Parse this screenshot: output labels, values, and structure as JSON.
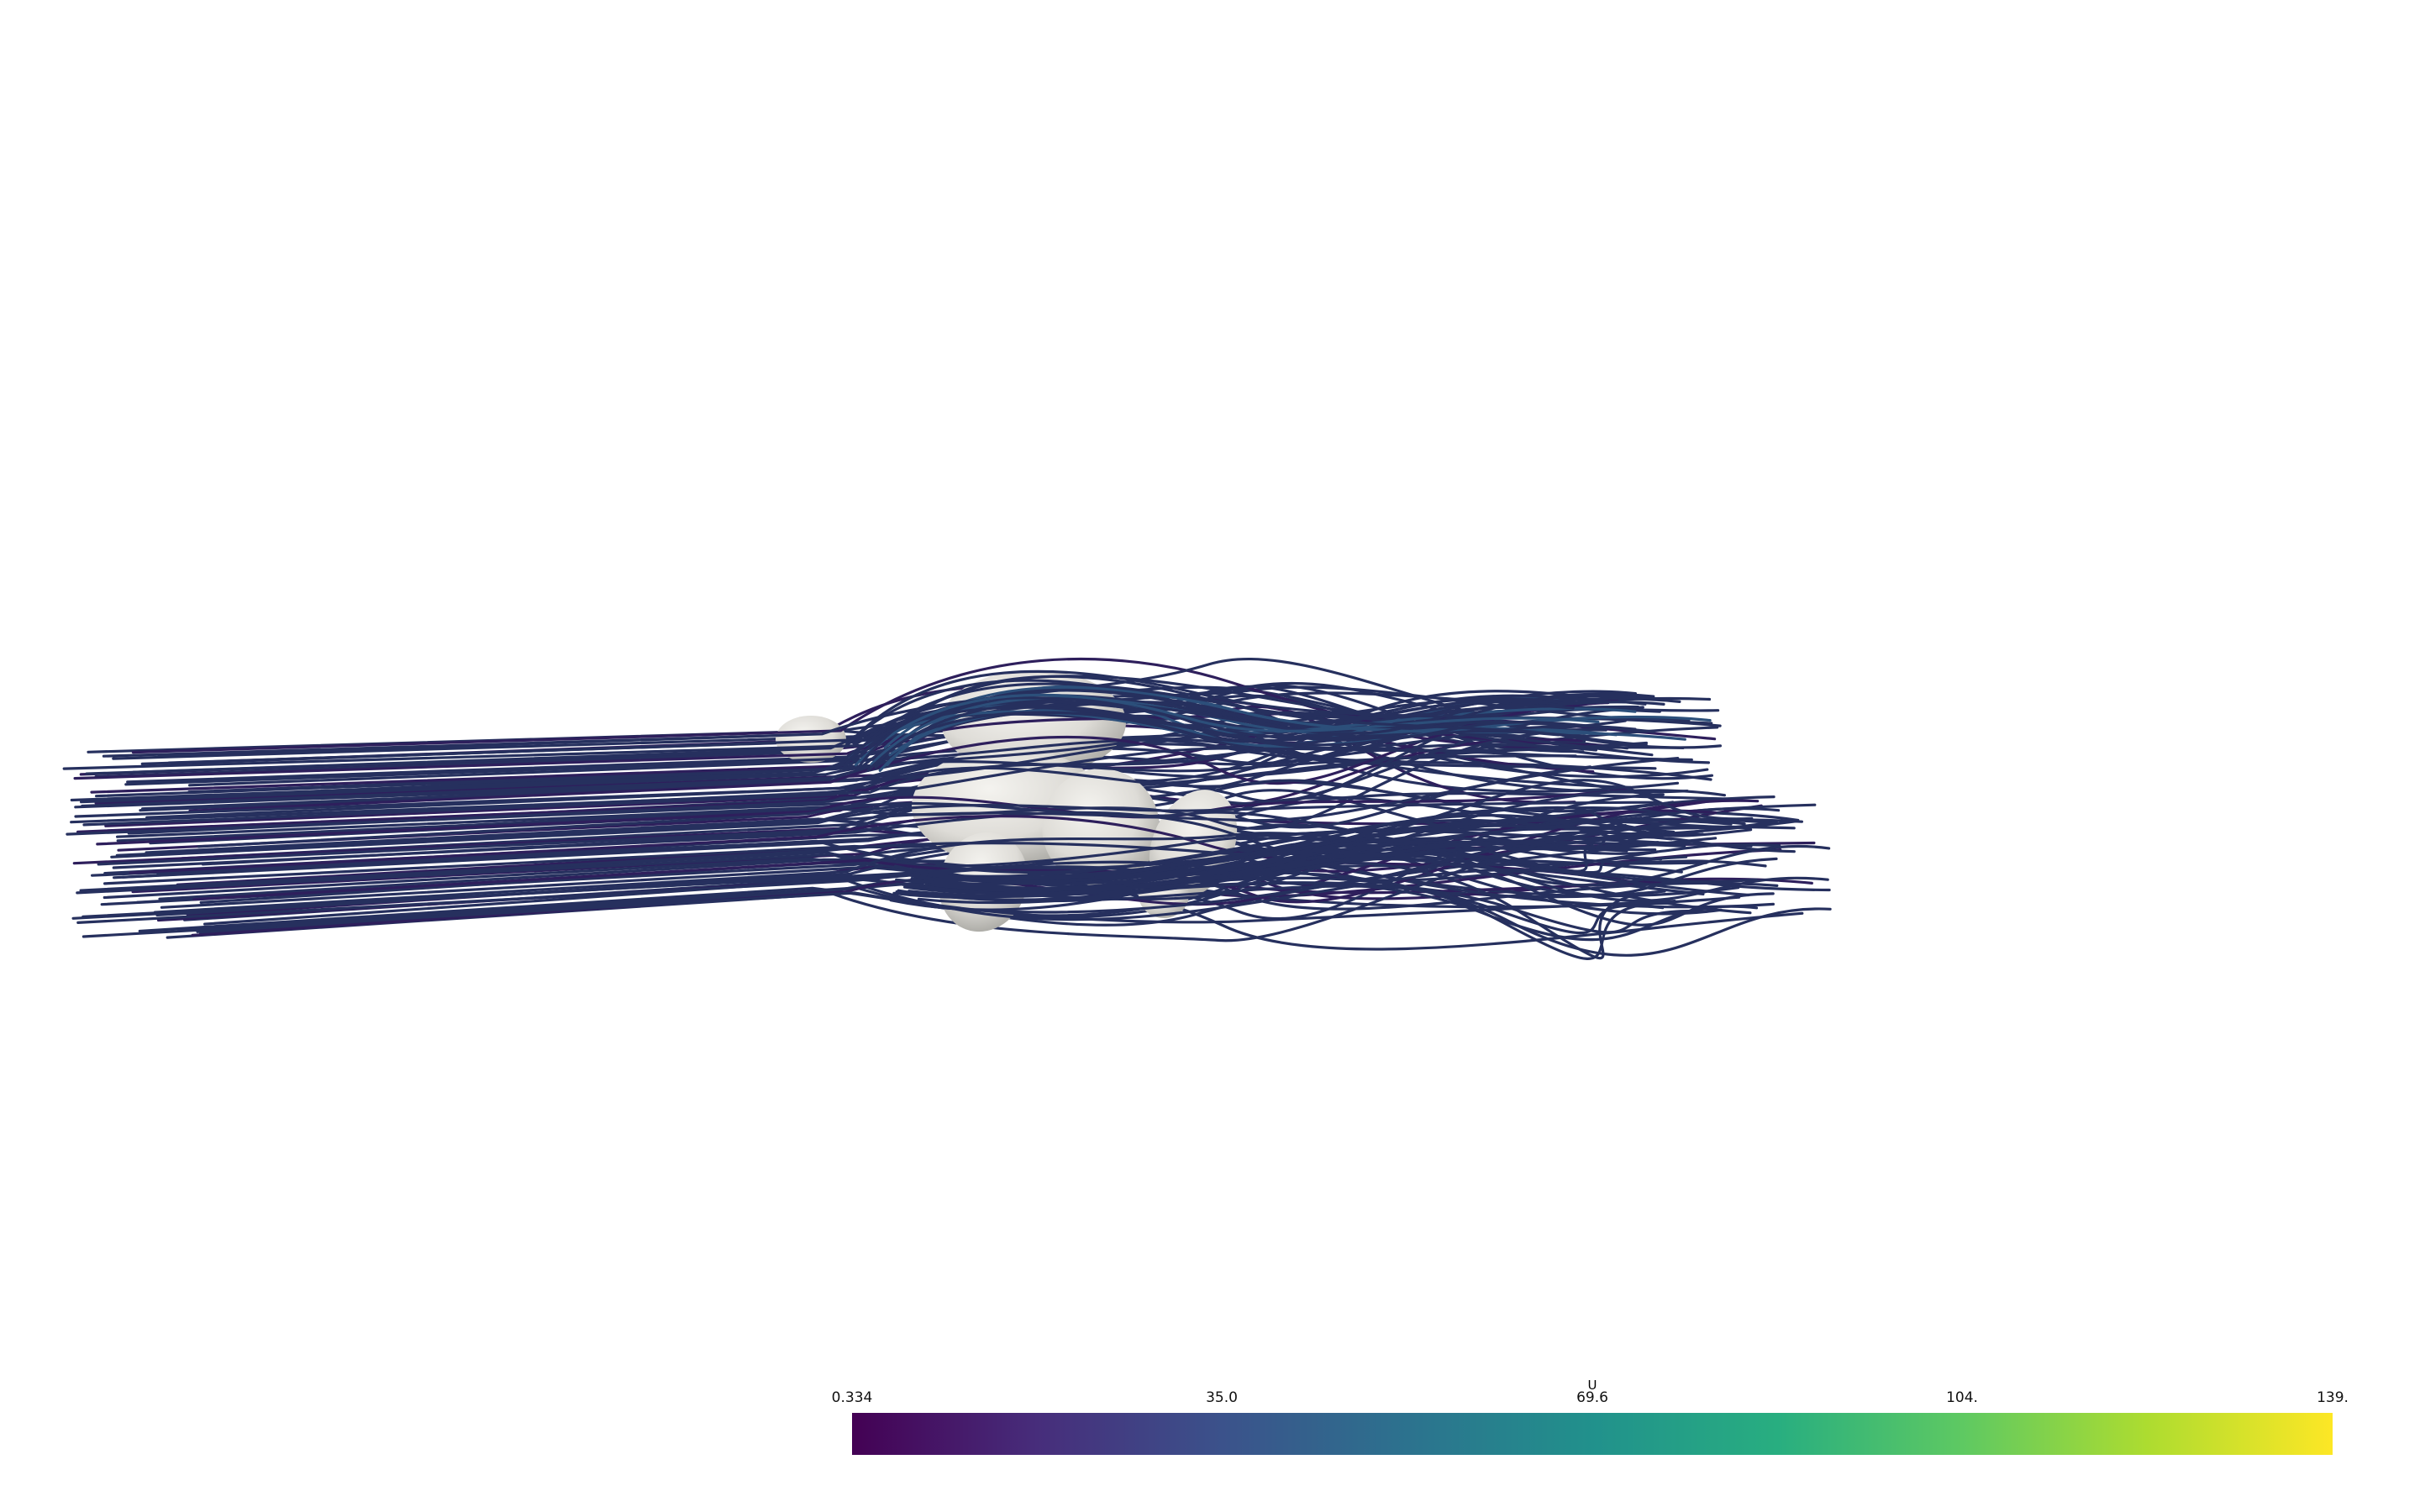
{
  "scalar_bar": {
    "title": "U",
    "ticks": [
      "0.334",
      "35.0",
      "69.6",
      "104.",
      "139."
    ],
    "colormap": [
      "#440154",
      "#472d7b",
      "#3b528b",
      "#2c728e",
      "#21918c",
      "#28ae80",
      "#5ec962",
      "#addc30",
      "#fde725"
    ]
  },
  "scene": {
    "streamline_color": "#26305e",
    "streamline_color_alt": "#2e1f5c",
    "body_color": "#e4e3df",
    "body_shadow": "#b9b8b3",
    "background": "#ffffff"
  }
}
